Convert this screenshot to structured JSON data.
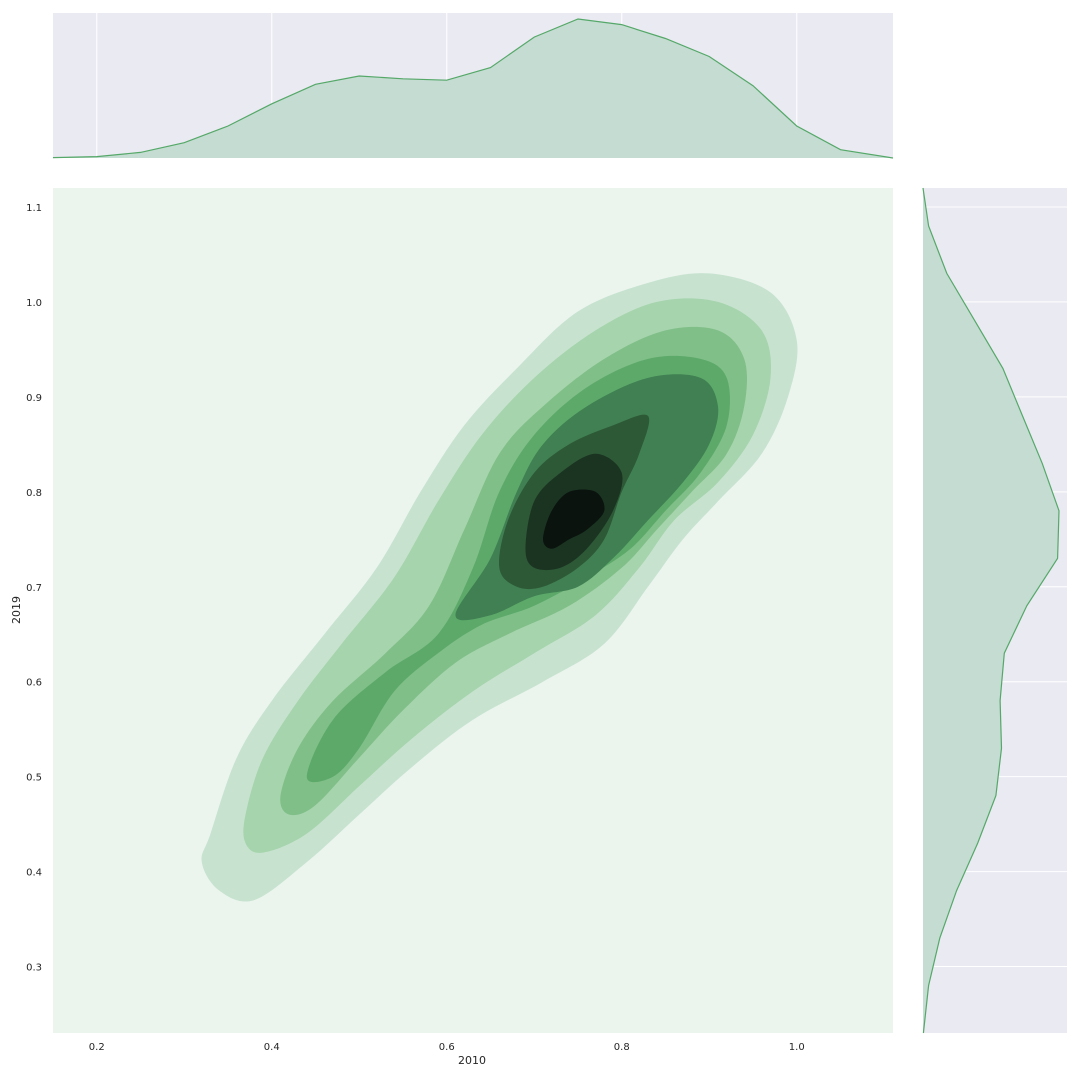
{
  "chart_data": {
    "type": "kde-jointplot",
    "xlabel": "2010",
    "ylabel": "2019",
    "xlim": [
      0.15,
      1.11
    ],
    "ylim": [
      0.23,
      1.12
    ],
    "x_ticks": [
      "0.2",
      "0.4",
      "0.6",
      "0.8",
      "1.0"
    ],
    "y_ticks": [
      "0.3",
      "0.4",
      "0.5",
      "0.6",
      "0.7",
      "0.8",
      "0.9",
      "1.0",
      "1.1"
    ],
    "grid": true,
    "colors": {
      "marginal_line": "#55a868",
      "marginal_fill": "#c4dcd2",
      "panel_bg": "#eaeaf2",
      "joint_bg": "#ebf5ee",
      "levels": [
        "#c7e3cf",
        "#a6d4ad",
        "#80bf88",
        "#5ca96a",
        "#408052",
        "#2d5936",
        "#1b3422",
        "#0a130d"
      ]
    },
    "marginal_x": {
      "x": [
        0.15,
        0.2,
        0.25,
        0.3,
        0.35,
        0.4,
        0.45,
        0.5,
        0.55,
        0.6,
        0.65,
        0.7,
        0.75,
        0.8,
        0.85,
        0.9,
        0.95,
        1.0,
        1.05,
        1.11
      ],
      "density": [
        0.003,
        0.01,
        0.04,
        0.11,
        0.23,
        0.39,
        0.53,
        0.59,
        0.57,
        0.56,
        0.65,
        0.87,
        1.0,
        0.96,
        0.86,
        0.73,
        0.52,
        0.23,
        0.06,
        0.0
      ]
    },
    "marginal_y": {
      "y": [
        0.23,
        0.28,
        0.33,
        0.38,
        0.43,
        0.48,
        0.53,
        0.58,
        0.63,
        0.68,
        0.73,
        0.78,
        0.83,
        0.88,
        0.93,
        0.98,
        1.03,
        1.08,
        1.12
      ],
      "density": [
        0.003,
        0.04,
        0.12,
        0.24,
        0.39,
        0.52,
        0.56,
        0.55,
        0.58,
        0.74,
        0.96,
        0.97,
        0.85,
        0.71,
        0.57,
        0.37,
        0.17,
        0.04,
        0.0
      ]
    },
    "joint_levels": [
      {
        "level": 1,
        "points": [
          [
            0.33,
            0.44
          ],
          [
            0.36,
            0.52
          ],
          [
            0.4,
            0.58
          ],
          [
            0.46,
            0.65
          ],
          [
            0.52,
            0.72
          ],
          [
            0.57,
            0.8
          ],
          [
            0.62,
            0.87
          ],
          [
            0.68,
            0.93
          ],
          [
            0.75,
            0.99
          ],
          [
            0.83,
            1.02
          ],
          [
            0.9,
            1.03
          ],
          [
            0.97,
            1.01
          ],
          [
            1.0,
            0.96
          ],
          [
            0.99,
            0.9
          ],
          [
            0.96,
            0.84
          ],
          [
            0.91,
            0.79
          ],
          [
            0.87,
            0.75
          ],
          [
            0.83,
            0.7
          ],
          [
            0.78,
            0.64
          ],
          [
            0.71,
            0.6
          ],
          [
            0.63,
            0.56
          ],
          [
            0.56,
            0.51
          ],
          [
            0.5,
            0.46
          ],
          [
            0.44,
            0.41
          ],
          [
            0.38,
            0.37
          ],
          [
            0.34,
            0.38
          ],
          [
            0.32,
            0.41
          ]
        ]
      },
      {
        "level": 2,
        "points": [
          [
            0.37,
            0.46
          ],
          [
            0.39,
            0.52
          ],
          [
            0.43,
            0.58
          ],
          [
            0.48,
            0.64
          ],
          [
            0.54,
            0.71
          ],
          [
            0.59,
            0.79
          ],
          [
            0.64,
            0.86
          ],
          [
            0.7,
            0.92
          ],
          [
            0.77,
            0.97
          ],
          [
            0.84,
            1.0
          ],
          [
            0.91,
            1.0
          ],
          [
            0.96,
            0.97
          ],
          [
            0.97,
            0.92
          ],
          [
            0.95,
            0.86
          ],
          [
            0.91,
            0.81
          ],
          [
            0.86,
            0.77
          ],
          [
            0.82,
            0.72
          ],
          [
            0.77,
            0.67
          ],
          [
            0.7,
            0.63
          ],
          [
            0.63,
            0.59
          ],
          [
            0.56,
            0.54
          ],
          [
            0.5,
            0.49
          ],
          [
            0.44,
            0.44
          ],
          [
            0.39,
            0.42
          ],
          [
            0.37,
            0.43
          ]
        ]
      },
      {
        "level": 3,
        "points": [
          [
            0.41,
            0.48
          ],
          [
            0.43,
            0.53
          ],
          [
            0.47,
            0.58
          ],
          [
            0.53,
            0.63
          ],
          [
            0.58,
            0.68
          ],
          [
            0.62,
            0.76
          ],
          [
            0.66,
            0.84
          ],
          [
            0.71,
            0.89
          ],
          [
            0.78,
            0.94
          ],
          [
            0.85,
            0.97
          ],
          [
            0.91,
            0.97
          ],
          [
            0.94,
            0.94
          ],
          [
            0.94,
            0.89
          ],
          [
            0.92,
            0.84
          ],
          [
            0.88,
            0.8
          ],
          [
            0.84,
            0.76
          ],
          [
            0.8,
            0.72
          ],
          [
            0.74,
            0.68
          ],
          [
            0.67,
            0.65
          ],
          [
            0.61,
            0.62
          ],
          [
            0.55,
            0.57
          ],
          [
            0.5,
            0.52
          ],
          [
            0.45,
            0.47
          ],
          [
            0.42,
            0.46
          ]
        ]
      },
      {
        "level": 4,
        "points": [
          [
            0.44,
            0.5
          ],
          [
            0.47,
            0.56
          ],
          [
            0.53,
            0.61
          ],
          [
            0.59,
            0.65
          ],
          [
            0.63,
            0.72
          ],
          [
            0.66,
            0.8
          ],
          [
            0.7,
            0.86
          ],
          [
            0.76,
            0.91
          ],
          [
            0.83,
            0.94
          ],
          [
            0.89,
            0.94
          ],
          [
            0.92,
            0.92
          ],
          [
            0.92,
            0.87
          ],
          [
            0.89,
            0.82
          ],
          [
            0.85,
            0.78
          ],
          [
            0.81,
            0.74
          ],
          [
            0.76,
            0.71
          ],
          [
            0.7,
            0.68
          ],
          [
            0.64,
            0.66
          ],
          [
            0.59,
            0.63
          ],
          [
            0.54,
            0.59
          ],
          [
            0.5,
            0.53
          ],
          [
            0.47,
            0.5
          ]
        ]
      },
      {
        "level": 5,
        "points": [
          [
            0.61,
            0.67
          ],
          [
            0.65,
            0.73
          ],
          [
            0.68,
            0.8
          ],
          [
            0.71,
            0.85
          ],
          [
            0.76,
            0.89
          ],
          [
            0.83,
            0.92
          ],
          [
            0.89,
            0.92
          ],
          [
            0.91,
            0.89
          ],
          [
            0.9,
            0.85
          ],
          [
            0.87,
            0.81
          ],
          [
            0.83,
            0.77
          ],
          [
            0.79,
            0.73
          ],
          [
            0.75,
            0.7
          ],
          [
            0.7,
            0.69
          ],
          [
            0.65,
            0.67
          ]
        ]
      },
      {
        "level": 6,
        "points": [
          [
            0.66,
            0.72
          ],
          [
            0.67,
            0.77
          ],
          [
            0.7,
            0.82
          ],
          [
            0.74,
            0.85
          ],
          [
            0.79,
            0.87
          ],
          [
            0.83,
            0.88
          ],
          [
            0.82,
            0.84
          ],
          [
            0.8,
            0.8
          ],
          [
            0.78,
            0.75
          ],
          [
            0.75,
            0.72
          ],
          [
            0.71,
            0.7
          ],
          [
            0.68,
            0.7
          ]
        ]
      },
      {
        "level": 7,
        "points": [
          [
            0.69,
            0.74
          ],
          [
            0.7,
            0.79
          ],
          [
            0.73,
            0.82
          ],
          [
            0.77,
            0.84
          ],
          [
            0.8,
            0.82
          ],
          [
            0.79,
            0.78
          ],
          [
            0.76,
            0.74
          ],
          [
            0.73,
            0.72
          ],
          [
            0.7,
            0.72
          ]
        ]
      },
      {
        "level": 8,
        "points": [
          [
            0.71,
            0.75
          ],
          [
            0.72,
            0.78
          ],
          [
            0.74,
            0.8
          ],
          [
            0.77,
            0.8
          ],
          [
            0.78,
            0.78
          ],
          [
            0.76,
            0.76
          ],
          [
            0.74,
            0.75
          ],
          [
            0.72,
            0.74
          ]
        ]
      }
    ]
  }
}
